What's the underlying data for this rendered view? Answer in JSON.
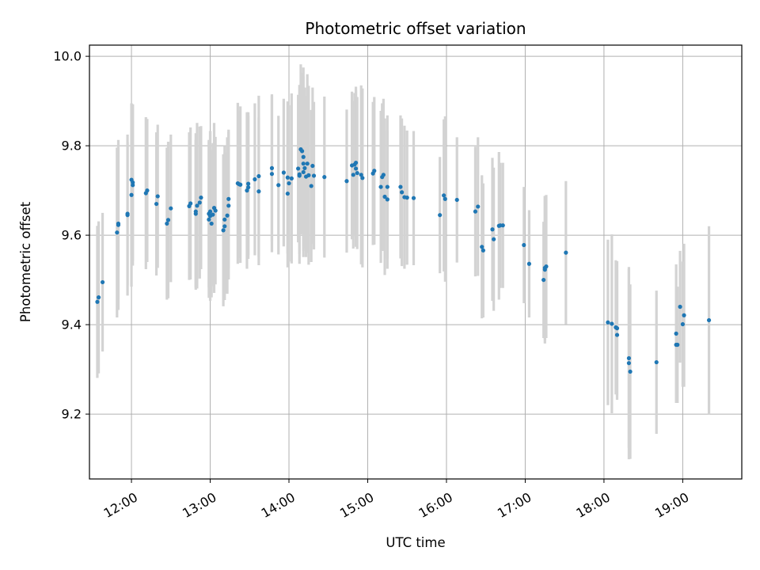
{
  "chart_data": {
    "type": "scatter",
    "title": "Photometric offset variation",
    "xlabel": "UTC time",
    "ylabel": "Photometric offset",
    "x_unit": "time of day",
    "xlim": [
      "11:28",
      "19:45"
    ],
    "ylim": [
      9.055,
      10.025
    ],
    "x_ticks": [
      "12:00",
      "13:00",
      "14:00",
      "15:00",
      "16:00",
      "17:00",
      "18:00",
      "19:00"
    ],
    "y_ticks": [
      9.2,
      9.4,
      9.6,
      9.8,
      10.0
    ],
    "y_tick_labels": [
      "9.2",
      "9.4",
      "9.6",
      "9.8",
      "10.0"
    ],
    "grid": true,
    "colors": {
      "points": "#1f77b4",
      "error_bars": "#d3d3d3",
      "grid": "#b0b0b0"
    },
    "series": [
      {
        "marker": "point",
        "error_bars": "symmetric",
        "points": [
          {
            "x": "11:34",
            "y": 9.451,
            "err": 0.17
          },
          {
            "x": "11:35",
            "y": 9.461,
            "err": 0.17
          },
          {
            "x": "11:38",
            "y": 9.495,
            "err": 0.155
          },
          {
            "x": "11:49",
            "y": 9.606,
            "err": 0.19
          },
          {
            "x": "11:50",
            "y": 9.623,
            "err": 0.19
          },
          {
            "x": "11:50",
            "y": 9.626,
            "err": 0.17
          },
          {
            "x": "11:57",
            "y": 9.645,
            "err": 0.18
          },
          {
            "x": "11:57",
            "y": 9.648,
            "err": 0.16
          },
          {
            "x": "12:00",
            "y": 9.69,
            "err": 0.205
          },
          {
            "x": "12:00",
            "y": 9.724,
            "err": 0.17
          },
          {
            "x": "12:01",
            "y": 9.712,
            "err": 0.18
          },
          {
            "x": "12:01",
            "y": 9.718,
            "err": 0.175
          },
          {
            "x": "12:11",
            "y": 9.694,
            "err": 0.17
          },
          {
            "x": "12:12",
            "y": 9.7,
            "err": 0.16
          },
          {
            "x": "12:19",
            "y": 9.67,
            "err": 0.16
          },
          {
            "x": "12:20",
            "y": 9.687,
            "err": 0.16
          },
          {
            "x": "12:27",
            "y": 9.626,
            "err": 0.17
          },
          {
            "x": "12:28",
            "y": 9.634,
            "err": 0.175
          },
          {
            "x": "12:30",
            "y": 9.66,
            "err": 0.165
          },
          {
            "x": "12:44",
            "y": 9.665,
            "err": 0.165
          },
          {
            "x": "12:45",
            "y": 9.671,
            "err": 0.17
          },
          {
            "x": "12:49",
            "y": 9.648,
            "err": 0.165
          },
          {
            "x": "12:49",
            "y": 9.653,
            "err": 0.175
          },
          {
            "x": "12:50",
            "y": 9.666,
            "err": 0.185
          },
          {
            "x": "12:52",
            "y": 9.673,
            "err": 0.17
          },
          {
            "x": "12:53",
            "y": 9.684,
            "err": 0.16
          },
          {
            "x": "12:59",
            "y": 9.635,
            "err": 0.175
          },
          {
            "x": "12:59",
            "y": 9.648,
            "err": 0.165
          },
          {
            "x": "13:00",
            "y": 9.653,
            "err": 0.18
          },
          {
            "x": "13:00",
            "y": 9.643,
            "err": 0.19
          },
          {
            "x": "13:01",
            "y": 9.626,
            "err": 0.165
          },
          {
            "x": "13:02",
            "y": 9.646,
            "err": 0.16
          },
          {
            "x": "13:03",
            "y": 9.661,
            "err": 0.19
          },
          {
            "x": "13:04",
            "y": 9.655,
            "err": 0.165
          },
          {
            "x": "13:10",
            "y": 9.611,
            "err": 0.17
          },
          {
            "x": "13:11",
            "y": 9.62,
            "err": 0.165
          },
          {
            "x": "13:11",
            "y": 9.635,
            "err": 0.165
          },
          {
            "x": "13:13",
            "y": 9.644,
            "err": 0.175
          },
          {
            "x": "13:14",
            "y": 9.666,
            "err": 0.165
          },
          {
            "x": "13:14",
            "y": 9.681,
            "err": 0.155
          },
          {
            "x": "13:21",
            "y": 9.716,
            "err": 0.18
          },
          {
            "x": "13:22",
            "y": 9.714,
            "err": 0.165
          },
          {
            "x": "13:23",
            "y": 9.713,
            "err": 0.175
          },
          {
            "x": "13:28",
            "y": 9.7,
            "err": 0.175
          },
          {
            "x": "13:29",
            "y": 9.715,
            "err": 0.16
          },
          {
            "x": "13:29",
            "y": 9.707,
            "err": 0.16
          },
          {
            "x": "13:34",
            "y": 9.725,
            "err": 0.17
          },
          {
            "x": "13:37",
            "y": 9.698,
            "err": 0.165
          },
          {
            "x": "13:37",
            "y": 9.732,
            "err": 0.18
          },
          {
            "x": "13:47",
            "y": 9.75,
            "err": 0.165
          },
          {
            "x": "13:47",
            "y": 9.737,
            "err": 0.175
          },
          {
            "x": "13:52",
            "y": 9.712,
            "err": 0.155
          },
          {
            "x": "13:56",
            "y": 9.74,
            "err": 0.165
          },
          {
            "x": "13:59",
            "y": 9.693,
            "err": 0.165
          },
          {
            "x": "13:59",
            "y": 9.729,
            "err": 0.17
          },
          {
            "x": "14:00",
            "y": 9.716,
            "err": 0.175
          },
          {
            "x": "14:02",
            "y": 9.727,
            "err": 0.19
          },
          {
            "x": "14:07",
            "y": 9.749,
            "err": 0.165
          },
          {
            "x": "14:08",
            "y": 9.736,
            "err": 0.2
          },
          {
            "x": "14:08",
            "y": 9.733,
            "err": 0.175
          },
          {
            "x": "14:09",
            "y": 9.792,
            "err": 0.19
          },
          {
            "x": "14:10",
            "y": 9.788,
            "err": 0.175
          },
          {
            "x": "14:11",
            "y": 9.775,
            "err": 0.2
          },
          {
            "x": "14:11",
            "y": 9.76,
            "err": 0.195
          },
          {
            "x": "14:11",
            "y": 9.741,
            "err": 0.19
          },
          {
            "x": "14:12",
            "y": 9.75,
            "err": 0.18
          },
          {
            "x": "14:13",
            "y": 9.731,
            "err": 0.18
          },
          {
            "x": "14:14",
            "y": 9.76,
            "err": 0.2
          },
          {
            "x": "14:15",
            "y": 9.734,
            "err": 0.2
          },
          {
            "x": "14:17",
            "y": 9.71,
            "err": 0.17
          },
          {
            "x": "14:18",
            "y": 9.755,
            "err": 0.175
          },
          {
            "x": "14:19",
            "y": 9.733,
            "err": 0.165
          },
          {
            "x": "14:27",
            "y": 9.73,
            "err": 0.18
          },
          {
            "x": "14:44",
            "y": 9.721,
            "err": 0.16
          },
          {
            "x": "14:48",
            "y": 9.756,
            "err": 0.165
          },
          {
            "x": "14:49",
            "y": 9.735,
            "err": 0.165
          },
          {
            "x": "14:50",
            "y": 9.758,
            "err": 0.16
          },
          {
            "x": "14:51",
            "y": 9.762,
            "err": 0.17
          },
          {
            "x": "14:51",
            "y": 9.749,
            "err": 0.175
          },
          {
            "x": "14:52",
            "y": 9.739,
            "err": 0.17
          },
          {
            "x": "14:55",
            "y": 9.735,
            "err": 0.2
          },
          {
            "x": "14:56",
            "y": 9.728,
            "err": 0.2
          },
          {
            "x": "15:04",
            "y": 9.738,
            "err": 0.16
          },
          {
            "x": "15:05",
            "y": 9.744,
            "err": 0.165
          },
          {
            "x": "15:10",
            "y": 9.708,
            "err": 0.17
          },
          {
            "x": "15:11",
            "y": 9.73,
            "err": 0.165
          },
          {
            "x": "15:12",
            "y": 9.735,
            "err": 0.17
          },
          {
            "x": "15:13",
            "y": 9.686,
            "err": 0.175
          },
          {
            "x": "15:15",
            "y": 9.68,
            "err": 0.155
          },
          {
            "x": "15:15",
            "y": 9.708,
            "err": 0.16
          },
          {
            "x": "15:25",
            "y": 9.708,
            "err": 0.16
          },
          {
            "x": "15:26",
            "y": 9.696,
            "err": 0.165
          },
          {
            "x": "15:28",
            "y": 9.685,
            "err": 0.16
          },
          {
            "x": "15:30",
            "y": 9.684,
            "err": 0.15
          },
          {
            "x": "15:35",
            "y": 9.683,
            "err": 0.15
          },
          {
            "x": "15:55",
            "y": 9.645,
            "err": 0.13
          },
          {
            "x": "15:58",
            "y": 9.689,
            "err": 0.17
          },
          {
            "x": "15:59",
            "y": 9.681,
            "err": 0.185
          },
          {
            "x": "16:08",
            "y": 9.679,
            "err": 0.14
          },
          {
            "x": "16:22",
            "y": 9.653,
            "err": 0.145
          },
          {
            "x": "16:24",
            "y": 9.664,
            "err": 0.155
          },
          {
            "x": "16:27",
            "y": 9.574,
            "err": 0.16
          },
          {
            "x": "16:28",
            "y": 9.566,
            "err": 0.15
          },
          {
            "x": "16:35",
            "y": 9.613,
            "err": 0.16
          },
          {
            "x": "16:36",
            "y": 9.591,
            "err": 0.16
          },
          {
            "x": "16:40",
            "y": 9.621,
            "err": 0.165
          },
          {
            "x": "16:41",
            "y": 9.622,
            "err": 0.14
          },
          {
            "x": "16:43",
            "y": 9.622,
            "err": 0.14
          },
          {
            "x": "16:59",
            "y": 9.578,
            "err": 0.13
          },
          {
            "x": "17:03",
            "y": 9.536,
            "err": 0.12
          },
          {
            "x": "17:14",
            "y": 9.5,
            "err": 0.13
          },
          {
            "x": "17:15",
            "y": 9.527,
            "err": 0.16
          },
          {
            "x": "17:15",
            "y": 9.523,
            "err": 0.165
          },
          {
            "x": "17:16",
            "y": 9.53,
            "err": 0.16
          },
          {
            "x": "17:31",
            "y": 9.561,
            "err": 0.16
          },
          {
            "x": "18:03",
            "y": 9.405,
            "err": 0.185
          },
          {
            "x": "18:06",
            "y": 9.402,
            "err": 0.2
          },
          {
            "x": "18:09",
            "y": 9.394,
            "err": 0.15
          },
          {
            "x": "18:10",
            "y": 9.377,
            "err": 0.145
          },
          {
            "x": "18:10",
            "y": 9.392,
            "err": 0.15
          },
          {
            "x": "18:19",
            "y": 9.325,
            "err": 0.2
          },
          {
            "x": "18:19",
            "y": 9.314,
            "err": 0.215
          },
          {
            "x": "18:20",
            "y": 9.295,
            "err": 0.195
          },
          {
            "x": "18:40",
            "y": 9.316,
            "err": 0.16
          },
          {
            "x": "18:55",
            "y": 9.38,
            "err": 0.155
          },
          {
            "x": "18:55",
            "y": 9.355,
            "err": 0.13
          },
          {
            "x": "18:56",
            "y": 9.355,
            "err": 0.13
          },
          {
            "x": "18:58",
            "y": 9.44,
            "err": 0.125
          },
          {
            "x": "19:00",
            "y": 9.401,
            "err": 0.14
          },
          {
            "x": "19:01",
            "y": 9.421,
            "err": 0.16
          },
          {
            "x": "19:20",
            "y": 9.41,
            "err": 0.21
          }
        ]
      }
    ]
  }
}
